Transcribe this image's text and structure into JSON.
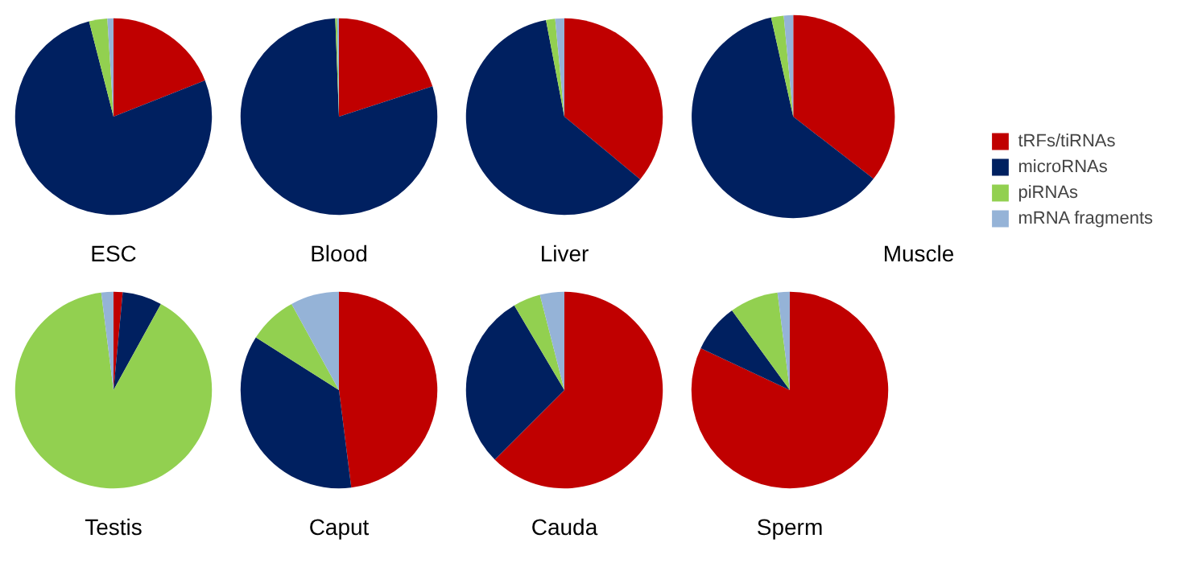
{
  "chart_data": [
    {
      "type": "pie",
      "title": "ESC",
      "categories": [
        null,
        null,
        null,
        null
      ],
      "values": [
        19,
        77,
        3,
        1
      ],
      "colors": [
        "#c00000",
        "#002060",
        "#92d050",
        "#95b3d7"
      ]
    },
    {
      "type": "pie",
      "title": "Blood",
      "categories": [
        null,
        null,
        null,
        null
      ],
      "values": [
        20,
        79.4,
        0.3,
        0.3
      ],
      "colors": [
        "#c00000",
        "#002060",
        "#92d050",
        "#95b3d7"
      ]
    },
    {
      "type": "pie",
      "title": "Liver",
      "categories": [
        null,
        null,
        null,
        null
      ],
      "values": [
        36,
        61,
        1.5,
        1.5
      ],
      "colors": [
        "#c00000",
        "#002060",
        "#92d050",
        "#95b3d7"
      ]
    },
    {
      "type": "pie",
      "title": "Muscle",
      "categories": [
        "tRFs/tiRNAs",
        "microRNAs",
        "piRNAs",
        "mRNA fragments"
      ],
      "values": [
        35.5,
        61,
        2,
        1.5
      ],
      "colors": [
        "#c00000",
        "#002060",
        "#92d050",
        "#95b3d7"
      ],
      "legend": "right"
    },
    {
      "type": "pie",
      "title": "Testis",
      "categories": [
        null,
        null,
        null,
        null
      ],
      "values": [
        1.5,
        6.5,
        90,
        2
      ],
      "colors": [
        "#c00000",
        "#002060",
        "#92d050",
        "#95b3d7"
      ]
    },
    {
      "type": "pie",
      "title": "Caput",
      "categories": [
        null,
        null,
        null,
        null
      ],
      "values": [
        48,
        36,
        8,
        8
      ],
      "colors": [
        "#c00000",
        "#002060",
        "#92d050",
        "#95b3d7"
      ]
    },
    {
      "type": "pie",
      "title": "Cauda",
      "categories": [
        null,
        null,
        null,
        null
      ],
      "values": [
        62.5,
        29,
        4.5,
        4
      ],
      "colors": [
        "#c00000",
        "#002060",
        "#92d050",
        "#95b3d7"
      ]
    },
    {
      "type": "pie",
      "title": "Sperm",
      "categories": [
        null,
        null,
        null,
        null
      ],
      "values": [
        82,
        8,
        8,
        2
      ],
      "colors": [
        "#c00000",
        "#002060",
        "#92d050",
        "#95b3d7"
      ]
    }
  ]
}
